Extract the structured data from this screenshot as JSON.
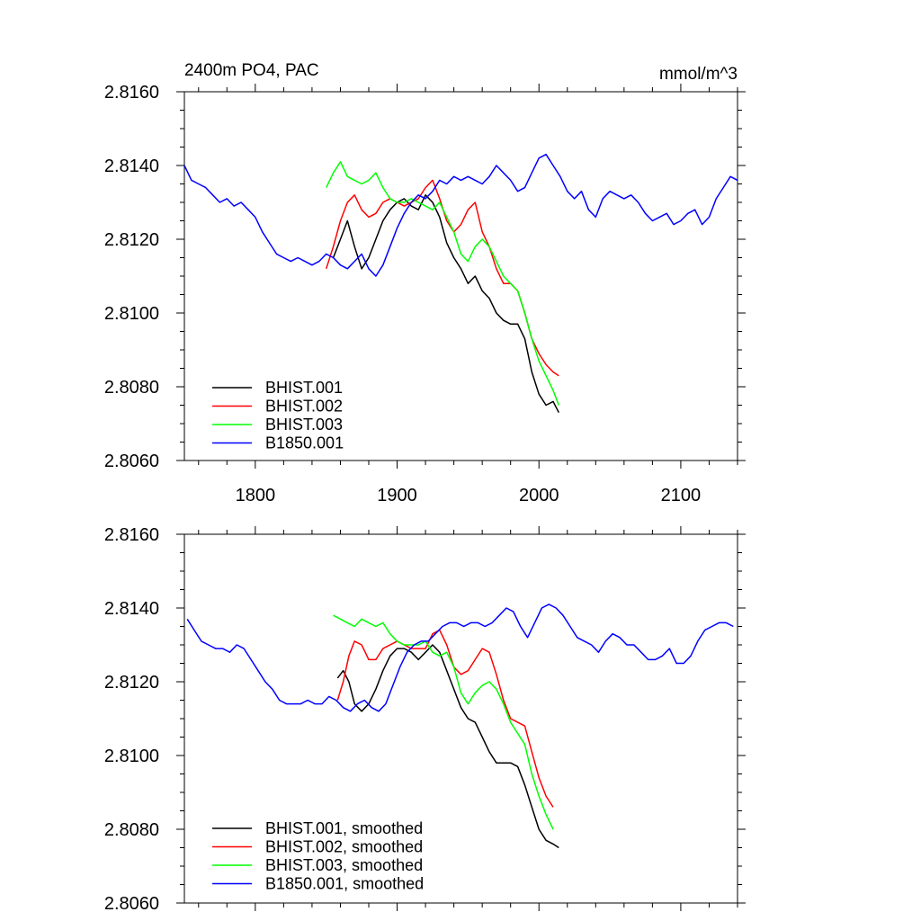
{
  "chart_data": [
    {
      "type": "line",
      "title": "2400m PO4, PAC",
      "units": "mmol/m^3",
      "xlabel": "",
      "ylabel": "",
      "xlim": [
        1750,
        2140
      ],
      "ylim": [
        2.806,
        2.816
      ],
      "x_ticks": [
        "1800",
        "1900",
        "2000",
        "2100"
      ],
      "y_ticks": [
        "2.8060",
        "2.8080",
        "2.8100",
        "2.8120",
        "2.8140",
        "2.8160"
      ],
      "legend_position": "bottom-left",
      "series": [
        {
          "name": "BHIST.001",
          "color": "#000000",
          "x": [
            1855,
            1860,
            1865,
            1870,
            1875,
            1880,
            1885,
            1890,
            1895,
            1900,
            1905,
            1910,
            1915,
            1920,
            1925,
            1930,
            1935,
            1940,
            1945,
            1950,
            1955,
            1960,
            1965,
            1970,
            1975,
            1980,
            1985,
            1990,
            1995,
            2000,
            2005,
            2010,
            2014
          ],
          "y": [
            2.8115,
            2.812,
            2.8125,
            2.8118,
            2.8112,
            2.8115,
            2.812,
            2.8125,
            2.8128,
            2.813,
            2.8131,
            2.8129,
            2.8128,
            2.8132,
            2.813,
            2.8126,
            2.8119,
            2.8115,
            2.8112,
            2.8108,
            2.811,
            2.8106,
            2.8104,
            2.81,
            2.8098,
            2.8097,
            2.8097,
            2.8093,
            2.8084,
            2.8078,
            2.8075,
            2.8076,
            2.8073
          ]
        },
        {
          "name": "BHIST.002",
          "color": "#ff0000",
          "x": [
            1850,
            1855,
            1860,
            1865,
            1870,
            1875,
            1880,
            1885,
            1890,
            1895,
            1900,
            1905,
            1910,
            1915,
            1920,
            1925,
            1930,
            1935,
            1940,
            1945,
            1950,
            1955,
            1960,
            1965,
            1970,
            1975,
            1980,
            1985,
            1990,
            1995,
            2000,
            2005,
            2010,
            2014
          ],
          "y": [
            2.8112,
            2.8118,
            2.8125,
            2.813,
            2.8132,
            2.8128,
            2.8126,
            2.8127,
            2.813,
            2.8131,
            2.813,
            2.8129,
            2.813,
            2.8131,
            2.8134,
            2.8136,
            2.8131,
            2.8125,
            2.8122,
            2.8124,
            2.8128,
            2.813,
            2.8122,
            2.8118,
            2.8112,
            2.8108,
            2.8108,
            2.8106,
            2.81,
            2.8093,
            2.8089,
            2.8086,
            2.8084,
            2.8083
          ]
        },
        {
          "name": "BHIST.003",
          "color": "#00ff00",
          "x": [
            1850,
            1855,
            1860,
            1865,
            1870,
            1875,
            1880,
            1885,
            1890,
            1895,
            1900,
            1905,
            1910,
            1915,
            1920,
            1925,
            1930,
            1935,
            1940,
            1945,
            1950,
            1955,
            1960,
            1965,
            1970,
            1975,
            1980,
            1985,
            1990,
            1995,
            2000,
            2005,
            2010,
            2014
          ],
          "y": [
            2.8134,
            2.8138,
            2.8141,
            2.8137,
            2.8136,
            2.8135,
            2.8136,
            2.8138,
            2.8134,
            2.8131,
            2.813,
            2.813,
            2.8131,
            2.813,
            2.8129,
            2.8128,
            2.813,
            2.8126,
            2.8122,
            2.8116,
            2.8114,
            2.8118,
            2.812,
            2.8118,
            2.8114,
            2.811,
            2.8108,
            2.8106,
            2.81,
            2.8093,
            2.8087,
            2.8083,
            2.8079,
            2.8075
          ]
        },
        {
          "name": "B1850.001",
          "color": "#0000ff",
          "x": [
            1750,
            1755,
            1760,
            1765,
            1770,
            1775,
            1780,
            1785,
            1790,
            1795,
            1800,
            1805,
            1810,
            1815,
            1820,
            1825,
            1830,
            1835,
            1840,
            1845,
            1850,
            1855,
            1860,
            1865,
            1870,
            1875,
            1880,
            1885,
            1890,
            1895,
            1900,
            1905,
            1910,
            1915,
            1920,
            1925,
            1930,
            1935,
            1940,
            1945,
            1950,
            1955,
            1960,
            1965,
            1970,
            1975,
            1980,
            1985,
            1990,
            1995,
            2000,
            2005,
            2010,
            2015,
            2020,
            2025,
            2030,
            2035,
            2040,
            2045,
            2050,
            2055,
            2060,
            2065,
            2070,
            2075,
            2080,
            2085,
            2090,
            2095,
            2100,
            2105,
            2110,
            2115,
            2120,
            2125,
            2130,
            2135,
            2140
          ],
          "y": [
            2.814,
            2.8136,
            2.8135,
            2.8134,
            2.8132,
            2.813,
            2.8131,
            2.8129,
            2.813,
            2.8128,
            2.8126,
            2.8122,
            2.8119,
            2.8116,
            2.8115,
            2.8114,
            2.8115,
            2.8114,
            2.8113,
            2.8114,
            2.8116,
            2.8115,
            2.8113,
            2.8112,
            2.8114,
            2.8116,
            2.8112,
            2.811,
            2.8113,
            2.8118,
            2.8123,
            2.8127,
            2.813,
            2.8132,
            2.8131,
            2.8133,
            2.8136,
            2.8135,
            2.8137,
            2.8136,
            2.8137,
            2.8136,
            2.8135,
            2.8137,
            2.814,
            2.8138,
            2.8136,
            2.8133,
            2.8134,
            2.8138,
            2.8142,
            2.8143,
            2.814,
            2.8137,
            2.8133,
            2.8131,
            2.8133,
            2.8128,
            2.8126,
            2.8131,
            2.8133,
            2.8132,
            2.8131,
            2.8132,
            2.813,
            2.8127,
            2.8125,
            2.8126,
            2.8127,
            2.8124,
            2.8125,
            2.8127,
            2.8128,
            2.8124,
            2.8126,
            2.8131,
            2.8134,
            2.8137,
            2.8136
          ]
        }
      ]
    },
    {
      "type": "line",
      "title": "",
      "xlabel": "",
      "ylabel": "",
      "xlim": [
        1750,
        2140
      ],
      "ylim": [
        2.806,
        2.816
      ],
      "y_ticks": [
        "2.8060",
        "2.8080",
        "2.8100",
        "2.8120",
        "2.8140",
        "2.8160"
      ],
      "legend_position": "bottom-left",
      "series": [
        {
          "name": "BHIST.001, smoothed",
          "color": "#000000",
          "x": [
            1858,
            1862,
            1866,
            1870,
            1875,
            1880,
            1885,
            1890,
            1895,
            1900,
            1905,
            1910,
            1915,
            1920,
            1925,
            1930,
            1935,
            1940,
            1945,
            1950,
            1955,
            1960,
            1965,
            1970,
            1975,
            1980,
            1985,
            1990,
            1995,
            2000,
            2005,
            2010,
            2014
          ],
          "y": [
            2.8121,
            2.8123,
            2.812,
            2.8114,
            2.8112,
            2.8114,
            2.8118,
            2.8123,
            2.8127,
            2.8129,
            2.8129,
            2.8128,
            2.8126,
            2.8128,
            2.813,
            2.8128,
            2.8123,
            2.8118,
            2.8113,
            2.811,
            2.8109,
            2.8105,
            2.8101,
            2.8098,
            2.8098,
            2.8098,
            2.8097,
            2.8092,
            2.8086,
            2.808,
            2.8077,
            2.8076,
            2.8075
          ]
        },
        {
          "name": "BHIST.002, smoothed",
          "color": "#ff0000",
          "x": [
            1858,
            1862,
            1866,
            1870,
            1875,
            1880,
            1885,
            1890,
            1895,
            1900,
            1905,
            1910,
            1915,
            1920,
            1925,
            1930,
            1935,
            1940,
            1945,
            1950,
            1955,
            1960,
            1965,
            1970,
            1975,
            1980,
            1985,
            1990,
            1995,
            2000,
            2005,
            2010
          ],
          "y": [
            2.8115,
            2.812,
            2.8127,
            2.8131,
            2.813,
            2.8126,
            2.8126,
            2.8129,
            2.813,
            2.8131,
            2.813,
            2.8129,
            2.8129,
            2.8129,
            2.8133,
            2.8134,
            2.813,
            2.8124,
            2.8122,
            2.8123,
            2.8126,
            2.8129,
            2.8128,
            2.8122,
            2.8115,
            2.811,
            2.8109,
            2.8108,
            2.8101,
            2.8094,
            2.8089,
            2.8086
          ]
        },
        {
          "name": "BHIST.003, smoothed",
          "color": "#00ff00",
          "x": [
            1855,
            1860,
            1865,
            1870,
            1875,
            1880,
            1885,
            1890,
            1895,
            1900,
            1905,
            1910,
            1915,
            1920,
            1925,
            1930,
            1935,
            1940,
            1945,
            1950,
            1955,
            1960,
            1965,
            1970,
            1975,
            1980,
            1985,
            1990,
            1995,
            2000,
            2005,
            2010
          ],
          "y": [
            2.8138,
            2.8137,
            2.8136,
            2.8135,
            2.8137,
            2.8136,
            2.8135,
            2.8136,
            2.8133,
            2.8131,
            2.813,
            2.813,
            2.813,
            2.8131,
            2.8128,
            2.8127,
            2.8128,
            2.8124,
            2.8117,
            2.8114,
            2.8117,
            2.8119,
            2.812,
            2.8118,
            2.8114,
            2.8109,
            2.8106,
            2.8103,
            2.8095,
            2.8089,
            2.8084,
            2.808
          ]
        },
        {
          "name": "B1850.001, smoothed",
          "color": "#0000ff",
          "x": [
            1752,
            1757,
            1762,
            1767,
            1772,
            1777,
            1782,
            1787,
            1792,
            1797,
            1802,
            1807,
            1812,
            1817,
            1822,
            1827,
            1832,
            1837,
            1842,
            1847,
            1852,
            1857,
            1862,
            1867,
            1872,
            1877,
            1882,
            1887,
            1892,
            1897,
            1902,
            1907,
            1912,
            1917,
            1922,
            1927,
            1932,
            1937,
            1942,
            1947,
            1952,
            1957,
            1962,
            1967,
            1972,
            1977,
            1982,
            1987,
            1992,
            1997,
            2002,
            2007,
            2012,
            2017,
            2022,
            2027,
            2032,
            2037,
            2042,
            2047,
            2052,
            2057,
            2062,
            2067,
            2072,
            2077,
            2082,
            2087,
            2092,
            2097,
            2102,
            2107,
            2112,
            2117,
            2122,
            2127,
            2132,
            2137
          ],
          "y": [
            2.8137,
            2.8134,
            2.8131,
            2.813,
            2.8129,
            2.8129,
            2.8128,
            2.813,
            2.8129,
            2.8126,
            2.8123,
            2.812,
            2.8118,
            2.8115,
            2.8114,
            2.8114,
            2.8114,
            2.8115,
            2.8114,
            2.8114,
            2.8116,
            2.8115,
            2.8113,
            2.8112,
            2.8114,
            2.8115,
            2.8113,
            2.8112,
            2.8114,
            2.8119,
            2.8124,
            2.8128,
            2.813,
            2.8131,
            2.8131,
            2.8133,
            2.8135,
            2.8136,
            2.8136,
            2.8135,
            2.8136,
            2.8136,
            2.8135,
            2.8136,
            2.8138,
            2.814,
            2.8139,
            2.8135,
            2.8132,
            2.8136,
            2.814,
            2.8141,
            2.814,
            2.8138,
            2.8135,
            2.8132,
            2.8131,
            2.813,
            2.8128,
            2.8131,
            2.8133,
            2.8132,
            2.813,
            2.813,
            2.8128,
            2.8126,
            2.8126,
            2.8127,
            2.8129,
            2.8125,
            2.8125,
            2.8127,
            2.8131,
            2.8134,
            2.8135,
            2.8136,
            2.8136,
            2.8135
          ]
        }
      ]
    }
  ]
}
